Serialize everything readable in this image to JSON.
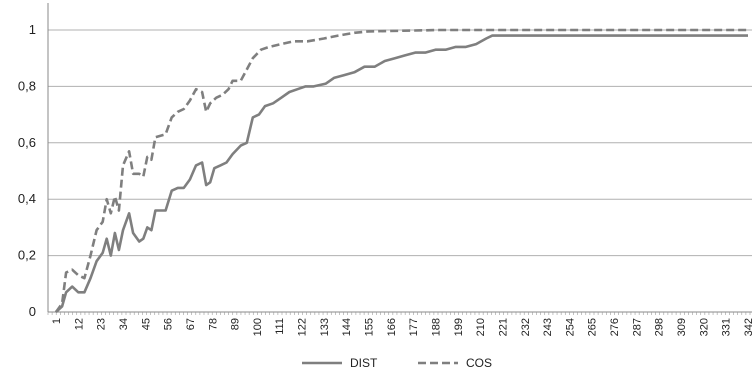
{
  "chart_data": {
    "type": "line",
    "title": "",
    "xlabel": "",
    "ylabel": "",
    "ylim": [
      0,
      1
    ],
    "xlim": [
      1,
      342
    ],
    "y_ticks": [
      0,
      0.2,
      0.4,
      0.6,
      0.8,
      1
    ],
    "y_tick_labels": [
      "0",
      "0,2",
      "0,4",
      "0,6",
      "0,8",
      "1"
    ],
    "x_tick_labels": [
      "1",
      "12",
      "23",
      "34",
      "45",
      "56",
      "67",
      "78",
      "89",
      "100",
      "111",
      "122",
      "133",
      "144",
      "155",
      "166",
      "177",
      "188",
      "199",
      "210",
      "221",
      "232",
      "243",
      "254",
      "265",
      "276",
      "287",
      "298",
      "309",
      "320",
      "331",
      "342"
    ],
    "grid": "horizontal",
    "legend_position": "bottom",
    "series": [
      {
        "name": "DIST",
        "color": "#7f7f7f",
        "dash": "solid",
        "points": [
          [
            1,
            0
          ],
          [
            4,
            0.02
          ],
          [
            6,
            0.07
          ],
          [
            9,
            0.09
          ],
          [
            12,
            0.07
          ],
          [
            15,
            0.07
          ],
          [
            18,
            0.12
          ],
          [
            21,
            0.18
          ],
          [
            24,
            0.21
          ],
          [
            26,
            0.26
          ],
          [
            28,
            0.2
          ],
          [
            30,
            0.28
          ],
          [
            32,
            0.22
          ],
          [
            34,
            0.29
          ],
          [
            37,
            0.35
          ],
          [
            39,
            0.28
          ],
          [
            42,
            0.25
          ],
          [
            44,
            0.26
          ],
          [
            46,
            0.3
          ],
          [
            48,
            0.29
          ],
          [
            50,
            0.36
          ],
          [
            55,
            0.36
          ],
          [
            58,
            0.43
          ],
          [
            61,
            0.44
          ],
          [
            64,
            0.44
          ],
          [
            67,
            0.47
          ],
          [
            70,
            0.52
          ],
          [
            73,
            0.53
          ],
          [
            75,
            0.45
          ],
          [
            77,
            0.46
          ],
          [
            79,
            0.51
          ],
          [
            82,
            0.52
          ],
          [
            85,
            0.53
          ],
          [
            88,
            0.56
          ],
          [
            92,
            0.59
          ],
          [
            95,
            0.6
          ],
          [
            98,
            0.69
          ],
          [
            101,
            0.7
          ],
          [
            104,
            0.73
          ],
          [
            108,
            0.74
          ],
          [
            112,
            0.76
          ],
          [
            116,
            0.78
          ],
          [
            120,
            0.79
          ],
          [
            124,
            0.8
          ],
          [
            128,
            0.8
          ],
          [
            134,
            0.81
          ],
          [
            138,
            0.83
          ],
          [
            143,
            0.84
          ],
          [
            148,
            0.85
          ],
          [
            153,
            0.87
          ],
          [
            158,
            0.87
          ],
          [
            163,
            0.89
          ],
          [
            168,
            0.9
          ],
          [
            173,
            0.91
          ],
          [
            178,
            0.92
          ],
          [
            183,
            0.92
          ],
          [
            188,
            0.93
          ],
          [
            193,
            0.93
          ],
          [
            198,
            0.94
          ],
          [
            203,
            0.94
          ],
          [
            208,
            0.95
          ],
          [
            213,
            0.97
          ],
          [
            216,
            0.98
          ],
          [
            342,
            0.98
          ]
        ]
      },
      {
        "name": "COS",
        "color": "#7f7f7f",
        "dash": "dashed",
        "points": [
          [
            1,
            0
          ],
          [
            4,
            0.03
          ],
          [
            6,
            0.14
          ],
          [
            9,
            0.15
          ],
          [
            12,
            0.13
          ],
          [
            15,
            0.12
          ],
          [
            18,
            0.2
          ],
          [
            21,
            0.29
          ],
          [
            24,
            0.32
          ],
          [
            26,
            0.4
          ],
          [
            28,
            0.35
          ],
          [
            30,
            0.41
          ],
          [
            32,
            0.36
          ],
          [
            34,
            0.52
          ],
          [
            37,
            0.57
          ],
          [
            39,
            0.49
          ],
          [
            42,
            0.49
          ],
          [
            44,
            0.48
          ],
          [
            46,
            0.55
          ],
          [
            48,
            0.54
          ],
          [
            50,
            0.62
          ],
          [
            55,
            0.63
          ],
          [
            58,
            0.69
          ],
          [
            61,
            0.71
          ],
          [
            64,
            0.72
          ],
          [
            67,
            0.75
          ],
          [
            70,
            0.79
          ],
          [
            73,
            0.78
          ],
          [
            75,
            0.71
          ],
          [
            77,
            0.74
          ],
          [
            80,
            0.76
          ],
          [
            83,
            0.77
          ],
          [
            86,
            0.79
          ],
          [
            88,
            0.82
          ],
          [
            92,
            0.82
          ],
          [
            95,
            0.86
          ],
          [
            98,
            0.9
          ],
          [
            102,
            0.93
          ],
          [
            106,
            0.94
          ],
          [
            112,
            0.95
          ],
          [
            118,
            0.96
          ],
          [
            125,
            0.96
          ],
          [
            133,
            0.97
          ],
          [
            140,
            0.98
          ],
          [
            148,
            0.99
          ],
          [
            155,
            0.995
          ],
          [
            190,
            1
          ],
          [
            342,
            1
          ]
        ]
      }
    ]
  }
}
